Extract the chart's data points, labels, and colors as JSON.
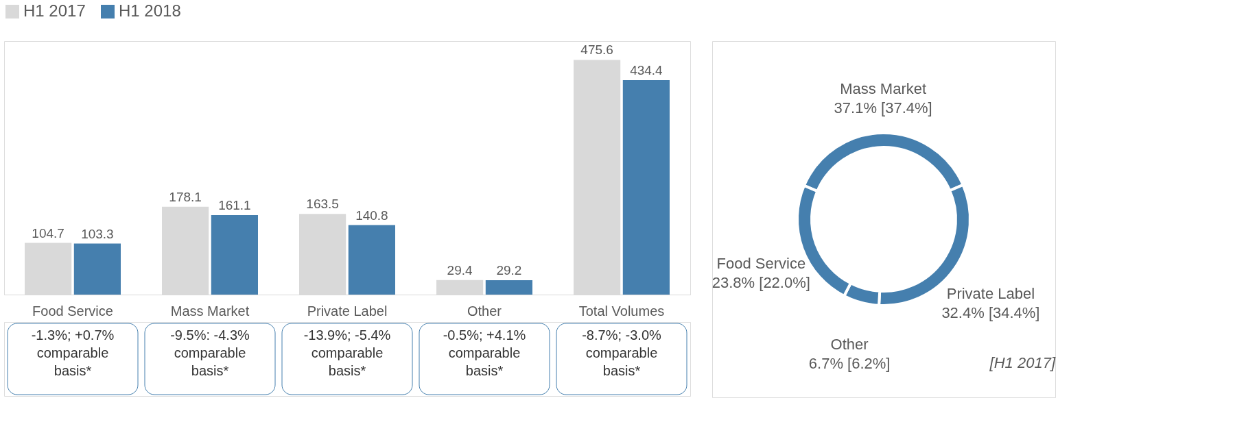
{
  "chart_data": [
    {
      "type": "bar",
      "categories": [
        "Food Service",
        "Mass Market",
        "Private Label",
        "Other",
        "Total Volumes"
      ],
      "series": [
        {
          "name": "H1 2017",
          "color": "#d9d9d9",
          "values": [
            104.7,
            178.1,
            163.5,
            29.4,
            475.6
          ]
        },
        {
          "name": "H1 2018",
          "color": "#457fae",
          "values": [
            103.3,
            161.1,
            140.8,
            29.2,
            434.4
          ]
        }
      ],
      "data_labels": true,
      "legend": "top left",
      "annotations": [
        "-1.3%; +0.7% comparable basis*",
        "-9.5%: -4.3% comparable basis*",
        "-13.9%; -5.4% comparable basis*",
        "-0.5%; +4.1% comparable basis*",
        "-8.7%; -3.0% comparable basis*"
      ]
    },
    {
      "type": "donut",
      "categories": [
        "Mass Market",
        "Private Label",
        "Other",
        "Food Service"
      ],
      "values": [
        37.1,
        32.4,
        6.7,
        23.8
      ],
      "colors": [
        "#457fae",
        "#457fae",
        "#457fae",
        "#457fae"
      ],
      "value_labels": [
        "37.1%  [37.4%]",
        "32.4%  [34.4%]",
        "6.7% [6.2%]",
        "23.8% [22.0%]"
      ],
      "annotations": [
        "[H1 2017]"
      ]
    }
  ]
}
